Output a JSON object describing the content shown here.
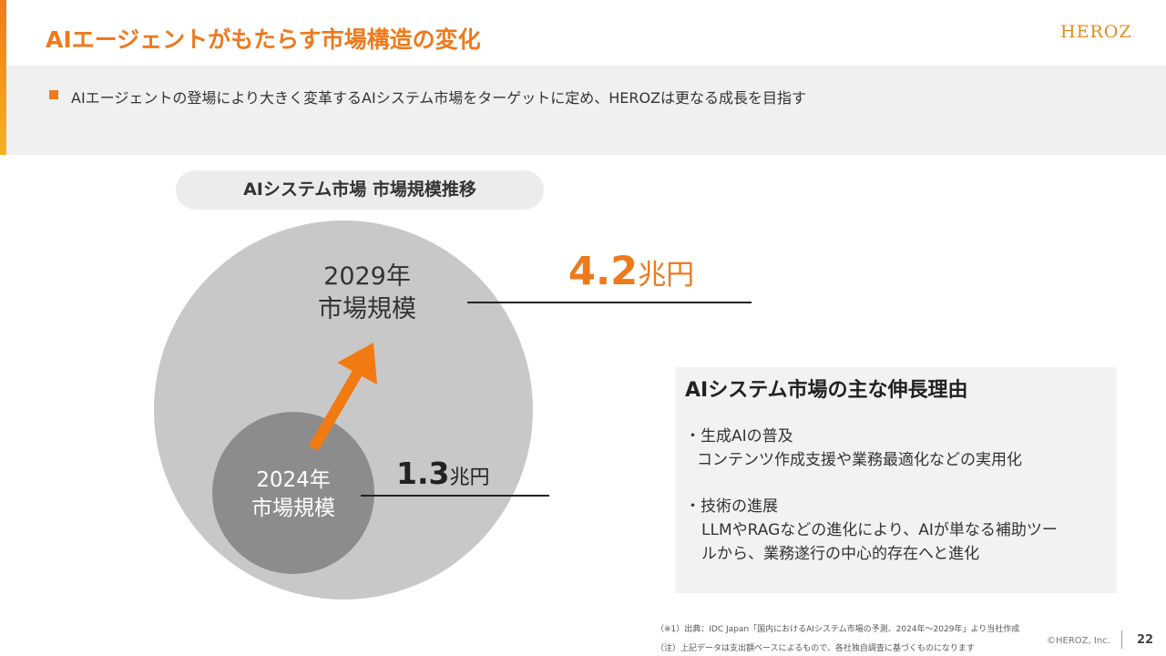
{
  "header": {
    "title": "AIエージェントがもたらす市場構造の変化",
    "logo": "HEROZ"
  },
  "lead": "AIエージェントの登場により大きく変革するAIシステム市場をターゲットに定め、HEROZは更なる成長を目指す",
  "diagram": {
    "pill": "AIシステム市場 市場規模推移",
    "label_2029": [
      "2029年",
      "市場規模"
    ],
    "label_2024": [
      "2024年",
      "市場規模"
    ],
    "value_2029": {
      "number": "4.2",
      "unit": "兆円"
    },
    "value_2024": {
      "number": "1.3",
      "unit": "兆円"
    }
  },
  "reasons": {
    "heading": "AIシステム市場の主な伸長理由",
    "items": [
      {
        "title": "・生成AIの普及",
        "lines": [
          "コンテンツ作成支援や業務最適化などの実用化"
        ]
      },
      {
        "title": "・技術の進展",
        "lines": [
          "LLMやRAGなどの進化により、AIが単なる補助ツー",
          "ルから、業務遂行の中心的存在へと進化"
        ]
      }
    ]
  },
  "footer": {
    "note1": "（※1）出典：IDC Japan「国内におけるAIシステム市場の予測、2024年～2029年」より当社作成",
    "note2": "（注）上記データは支出額ベースによるもので、各社独自調査に基づくものになります",
    "copyright": "©HEROZ, Inc.",
    "page": "22"
  },
  "colors": {
    "accent": "#ee7a1d",
    "big_circle": "#c8c8c8",
    "small_circle": "#8c8c8c"
  }
}
